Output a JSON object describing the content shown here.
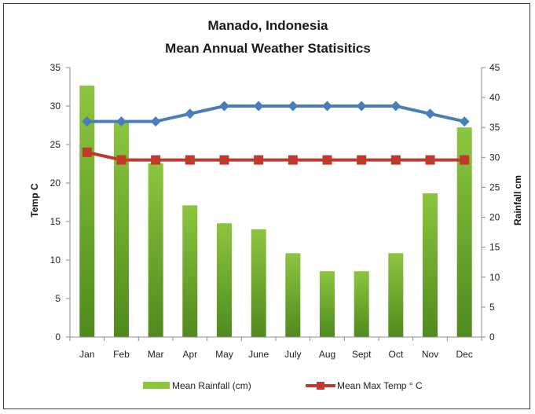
{
  "chart_data": {
    "type": "bar",
    "title": "Manado, Indonesia",
    "subtitle": "Mean Annual Weather Statisitics",
    "categories": [
      "Jan",
      "Feb",
      "Mar",
      "Apr",
      "May",
      "June",
      "July",
      "Aug",
      "Sept",
      "Oct",
      "Nov",
      "Dec"
    ],
    "ylabel_left": "Temp C",
    "ylabel_right": "Rainfall cm",
    "ylim_left": [
      0,
      35
    ],
    "yticks_left": [
      "0",
      "5",
      "10",
      "15",
      "20",
      "25",
      "30",
      "35"
    ],
    "ylim_right": [
      0,
      45
    ],
    "yticks_right": [
      "0",
      "5",
      "10",
      "15",
      "20",
      "25",
      "30",
      "35",
      "40",
      "45"
    ],
    "grid": false,
    "legend_position": "bottom",
    "series": [
      {
        "name": "Mean Rainfall (cm)",
        "kind": "bar",
        "axis": "right",
        "color": "#8cc63f",
        "values": [
          42,
          36,
          29,
          22,
          19,
          18,
          14,
          11,
          11,
          14,
          24,
          35
        ]
      },
      {
        "name": "Mean Max Temp ° C",
        "kind": "line",
        "axis": "left",
        "color": "#c0392b",
        "marker": "square",
        "values": [
          24,
          23,
          23,
          23,
          23,
          23,
          23,
          23,
          23,
          23,
          23,
          23
        ]
      },
      {
        "name": "",
        "kind": "line",
        "axis": "left",
        "color": "#4a7ebb",
        "marker": "diamond",
        "values": [
          28,
          28,
          28,
          29,
          30,
          30,
          30,
          30,
          30,
          30,
          29,
          28
        ]
      }
    ]
  }
}
